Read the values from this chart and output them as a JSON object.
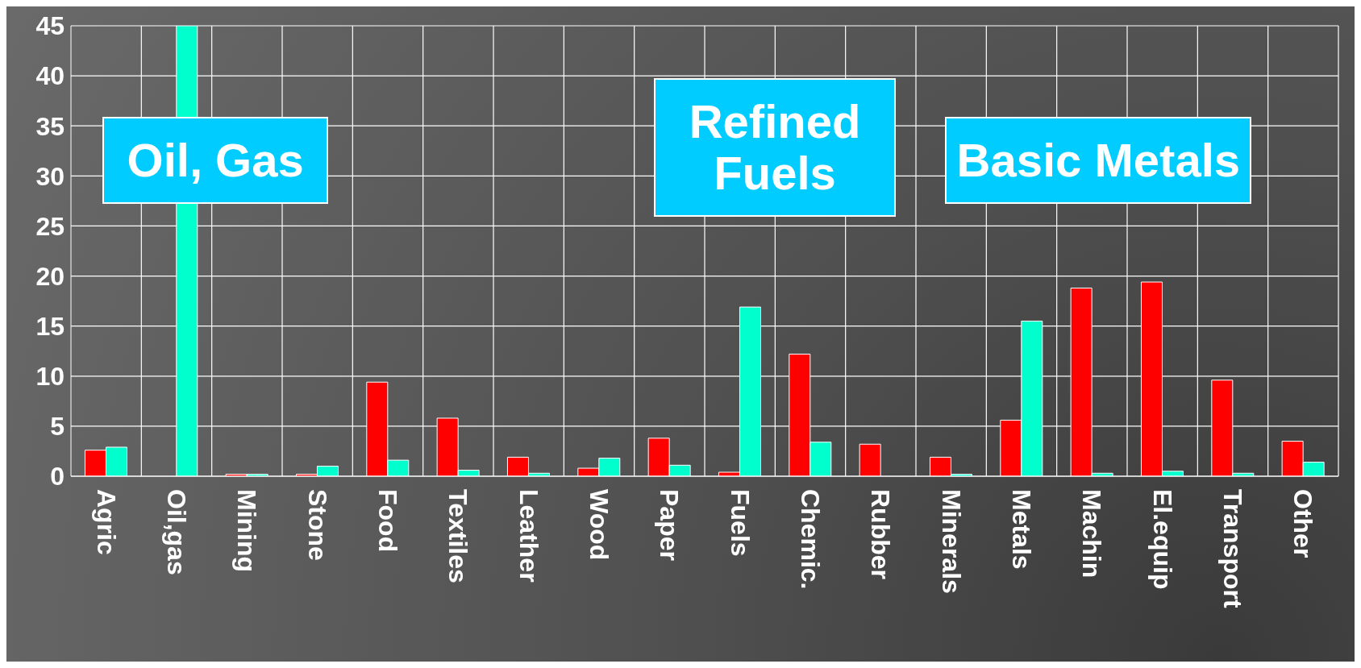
{
  "chart_data": {
    "type": "bar",
    "categories": [
      "Agric",
      "Oil,gas",
      "Mining",
      "Stone",
      "Food",
      "Textiles",
      "Leather",
      "Wood",
      "Paper",
      "Fuels",
      "Chemic.",
      "Rubber",
      "Minerals",
      "Metals",
      "Machin",
      "El.equip",
      "Transport",
      "Other"
    ],
    "series": [
      {
        "color": "#ff0000",
        "values": [
          2.6,
          0,
          0.2,
          0.2,
          9.4,
          5.8,
          1.9,
          0.8,
          3.8,
          0.4,
          12.2,
          3.2,
          1.9,
          5.6,
          18.8,
          19.4,
          9.6,
          3.5
        ]
      },
      {
        "color": "#00ffcc",
        "values": [
          2.9,
          45,
          0.2,
          1.0,
          1.6,
          0.6,
          0.3,
          1.8,
          1.1,
          16.9,
          3.4,
          0,
          0.2,
          15.5,
          0.3,
          0.5,
          0.3,
          1.4
        ]
      }
    ],
    "ylim": [
      0,
      45
    ],
    "yticks": [
      0,
      5,
      10,
      15,
      20,
      25,
      30,
      35,
      40,
      45
    ],
    "grid": true,
    "legend": false,
    "annotations": [
      "Oil, Gas",
      "Refined Fuels",
      "Basic Metals"
    ]
  }
}
